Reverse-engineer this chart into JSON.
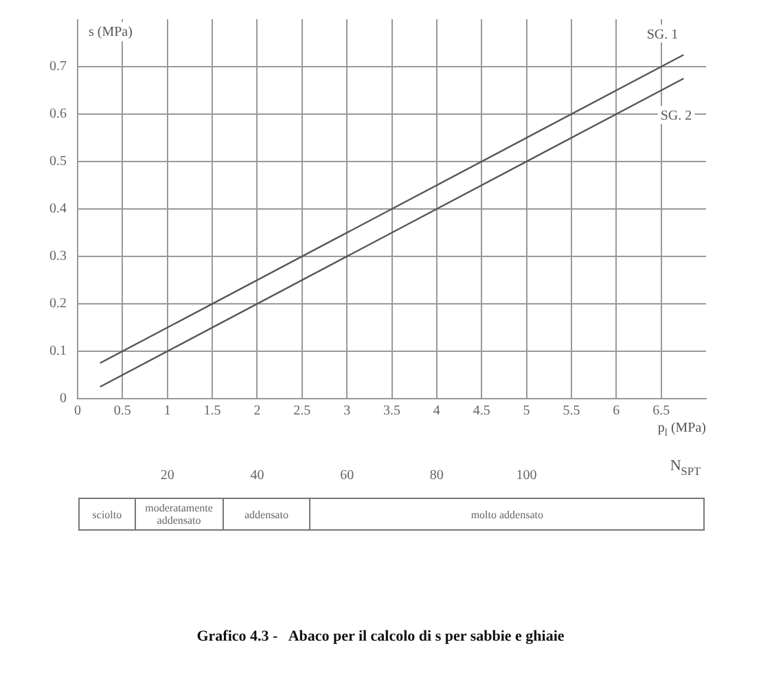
{
  "chart_data": {
    "type": "line",
    "title": "Grafico 4.3 -   Abaco per il calcolo di s per sabbie e ghiaie",
    "xlabel": "p$_{l}$ (MPa)",
    "ylabel": "s (MPa)",
    "x2label": "N$_{SPT}$",
    "x": [
      0.25,
      6.75
    ],
    "series": [
      {
        "name": "SG. 1",
        "color": "#555555",
        "values": [
          0.075,
          0.725
        ]
      },
      {
        "name": "SG. 2",
        "color": "#555555",
        "values": [
          0.025,
          0.675
        ]
      }
    ],
    "xlim": [
      0,
      7
    ],
    "xticks": [
      0,
      0.5,
      1,
      1.5,
      2,
      2.5,
      3,
      3.5,
      4,
      4.5,
      5,
      5.5,
      6,
      6.5
    ],
    "ylim": [
      0,
      0.8
    ],
    "yticks": [
      0,
      0.1,
      0.2,
      0.3,
      0.4,
      0.5,
      0.6,
      0.7
    ],
    "x2lim": [
      0,
      140
    ],
    "x2ticks": [
      20,
      40,
      60,
      80,
      100
    ],
    "annotations": [
      "sciolto",
      "moderatamente addensato",
      "addensato",
      "molto addensato"
    ],
    "grid": true,
    "legend": false,
    "marker": "none",
    "line_style": "solid"
  }
}
